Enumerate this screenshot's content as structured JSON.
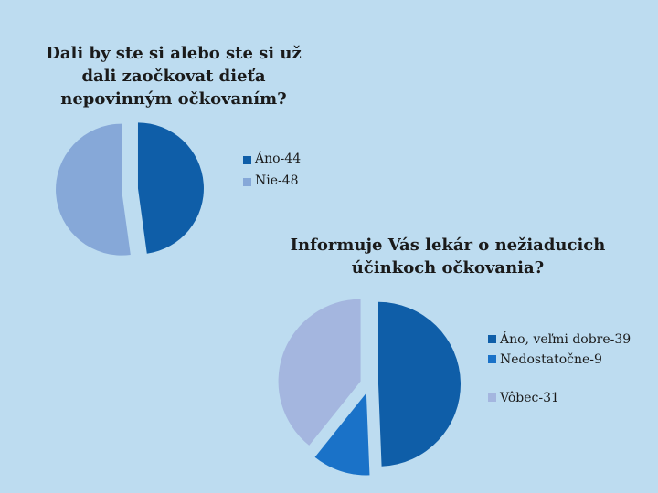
{
  "chart_data": [
    {
      "type": "pie",
      "title": "Dali by ste si alebo ste si už dali zaočkovat dieťa nepovinným očkovaním?",
      "categories": [
        "Áno-44",
        "Nie-48"
      ],
      "values": [
        44,
        48
      ],
      "colors": [
        "#0f5ea8",
        "#86a8d8"
      ],
      "exploded": true,
      "legend": "right"
    },
    {
      "type": "pie",
      "title": "Informuje Vás lekár o nežiaducich účinkoch očkovania?",
      "categories": [
        "Áno, veľmi dobre-39",
        "Nedostatočne-9",
        "Vôbec-31"
      ],
      "values": [
        39,
        9,
        31
      ],
      "colors": [
        "#0f5ea8",
        "#1a72c8",
        "#a4b6df"
      ],
      "exploded": true,
      "legend": "right"
    }
  ]
}
